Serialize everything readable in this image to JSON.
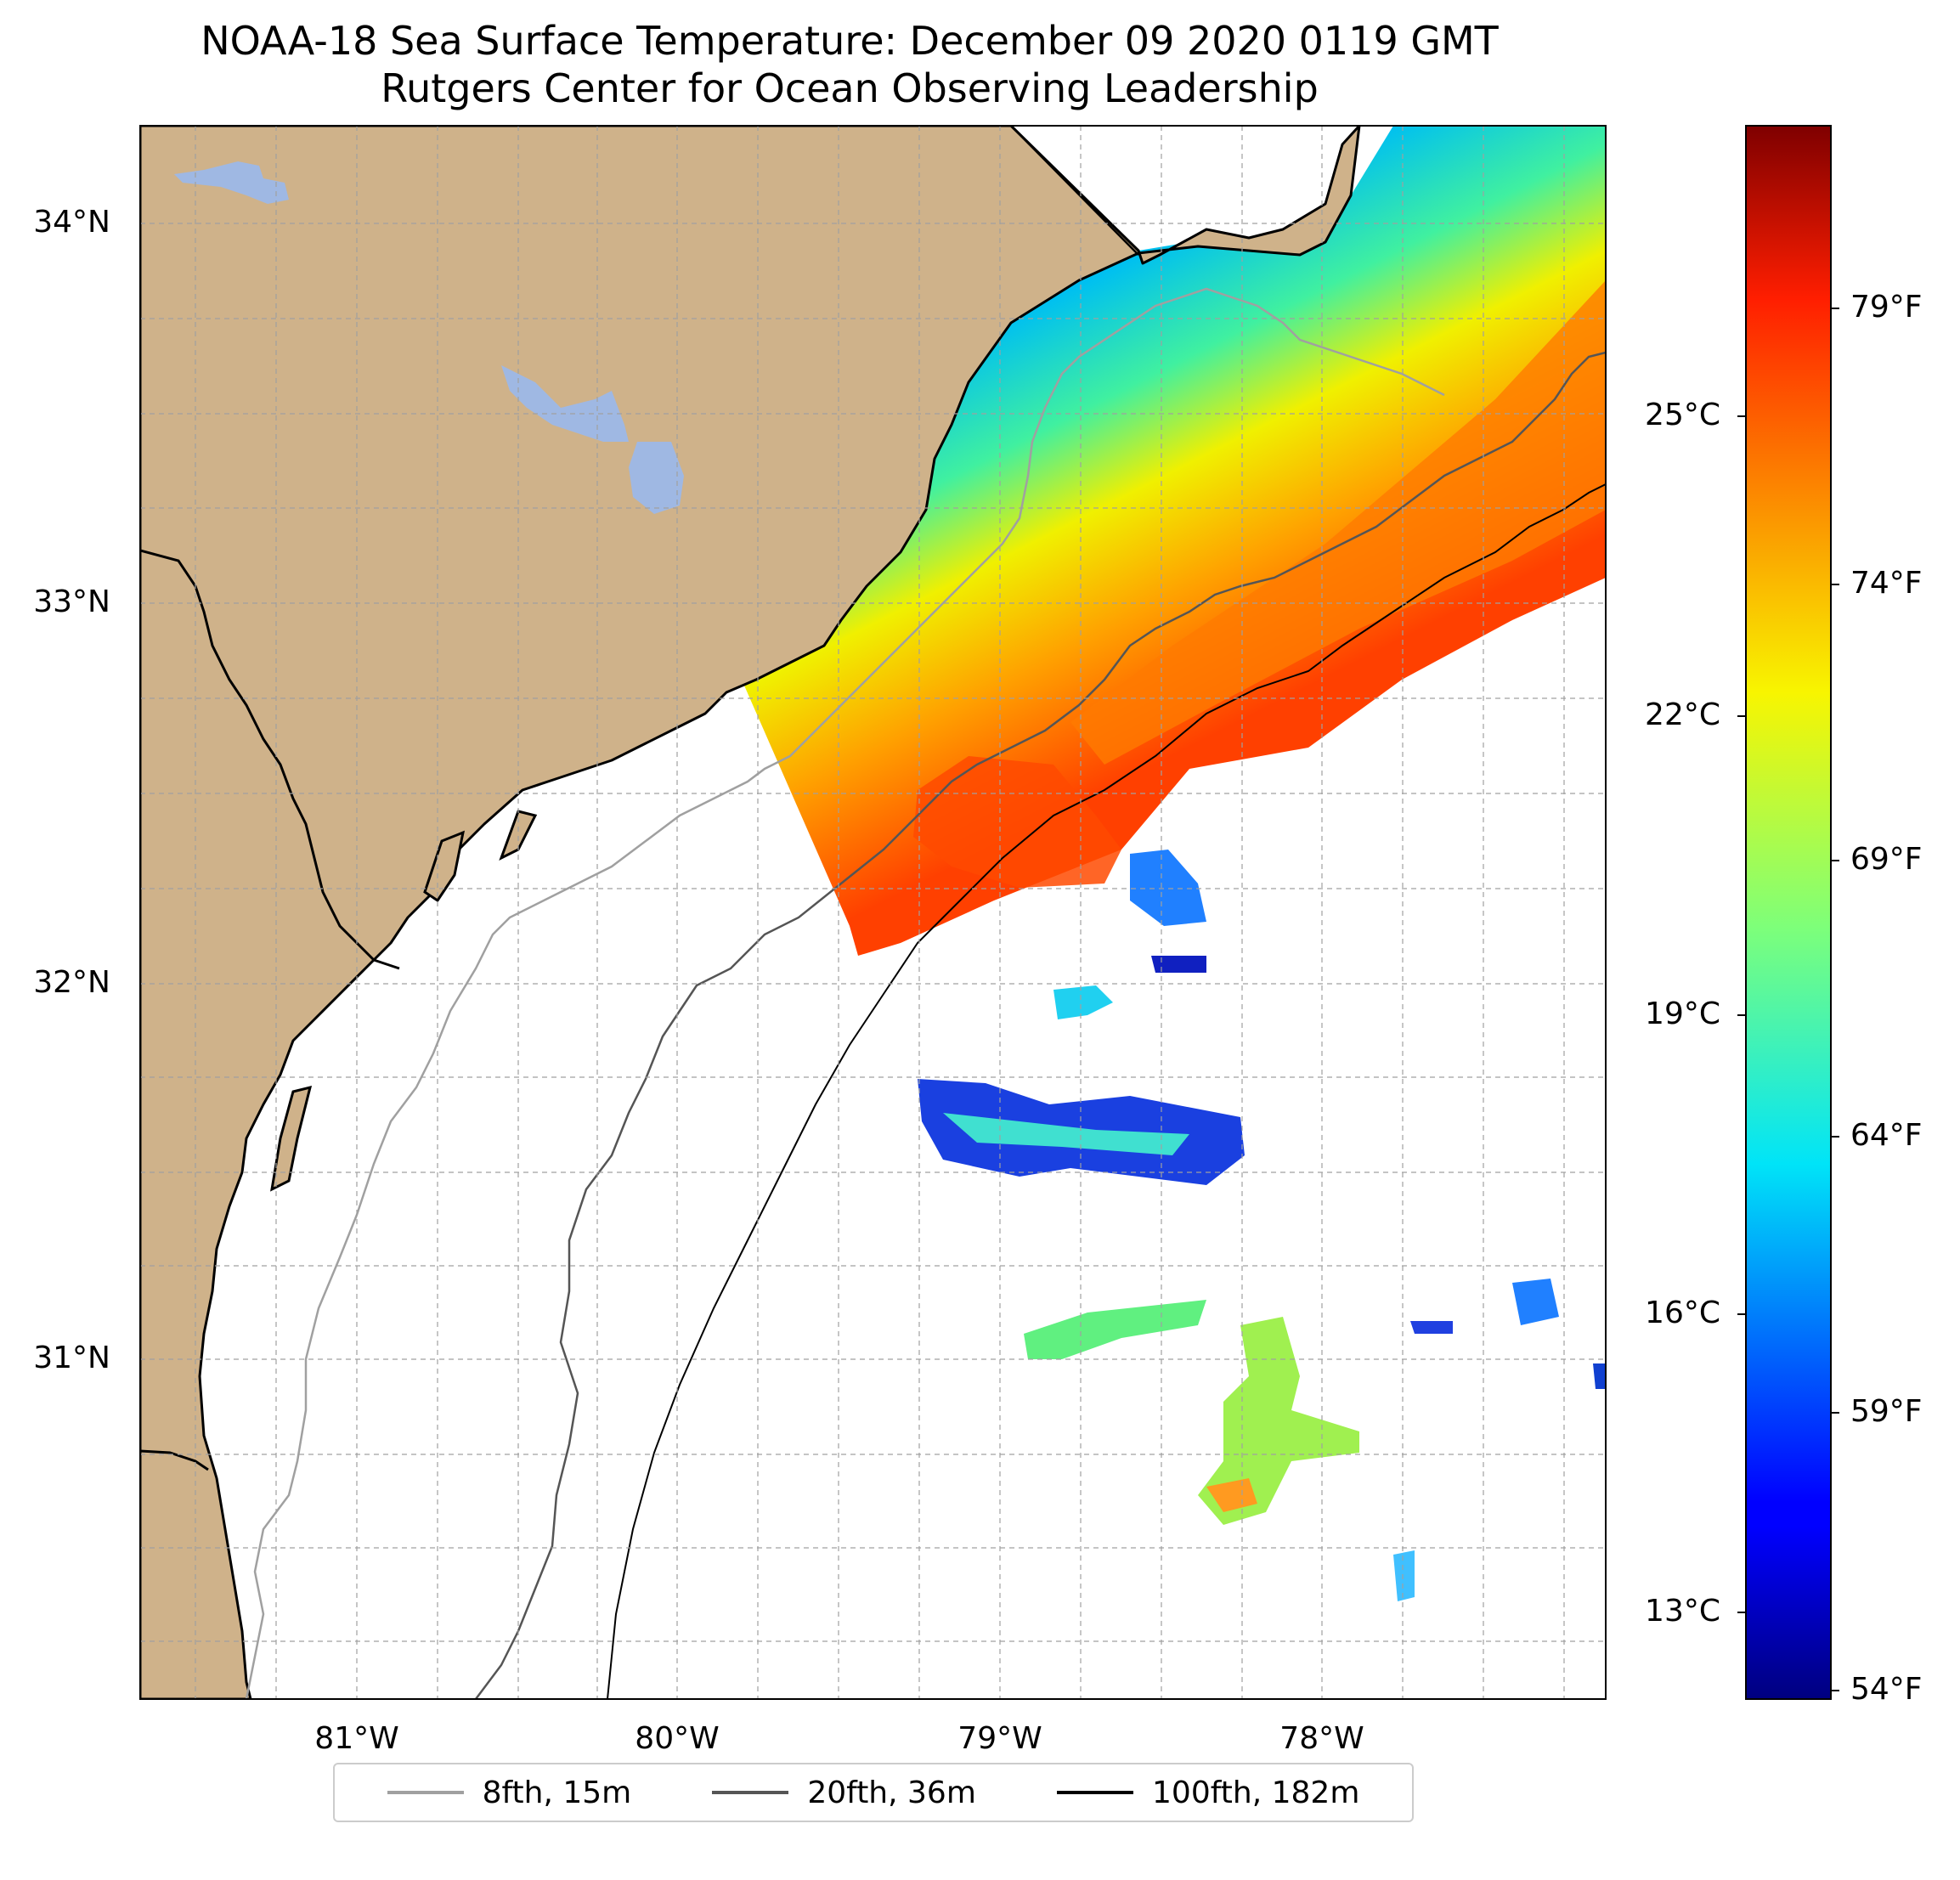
{
  "title": {
    "line1": "NOAA-18 Sea Surface Temperature: December 09 2020 0119 GMT",
    "line2": "Rutgers Center for Ocean Observing Leadership"
  },
  "map": {
    "lat_labels": [
      "34°N",
      "33°N",
      "32°N",
      "31°N"
    ],
    "lon_labels": [
      "81°W",
      "80°W",
      "79°W",
      "78°W"
    ],
    "colors": {
      "land": "#cfb28a",
      "lakes": "#9fb8e3",
      "ocean": "#ffffff",
      "grid": "#a0a0a0"
    }
  },
  "colorbar": {
    "celsius_labels": [
      "25°C",
      "22°C",
      "19°C",
      "16°C",
      "13°C"
    ],
    "fahrenheit_labels": [
      "79°F",
      "74°F",
      "69°F",
      "64°F",
      "59°F",
      "54°F"
    ],
    "colormap": "jet"
  },
  "legend": {
    "items": [
      {
        "label": "8fth, 15m",
        "color": "#a0a0a0"
      },
      {
        "label": "20fth, 36m",
        "color": "#555555"
      },
      {
        "label": "100fth, 182m",
        "color": "#000000"
      }
    ]
  }
}
